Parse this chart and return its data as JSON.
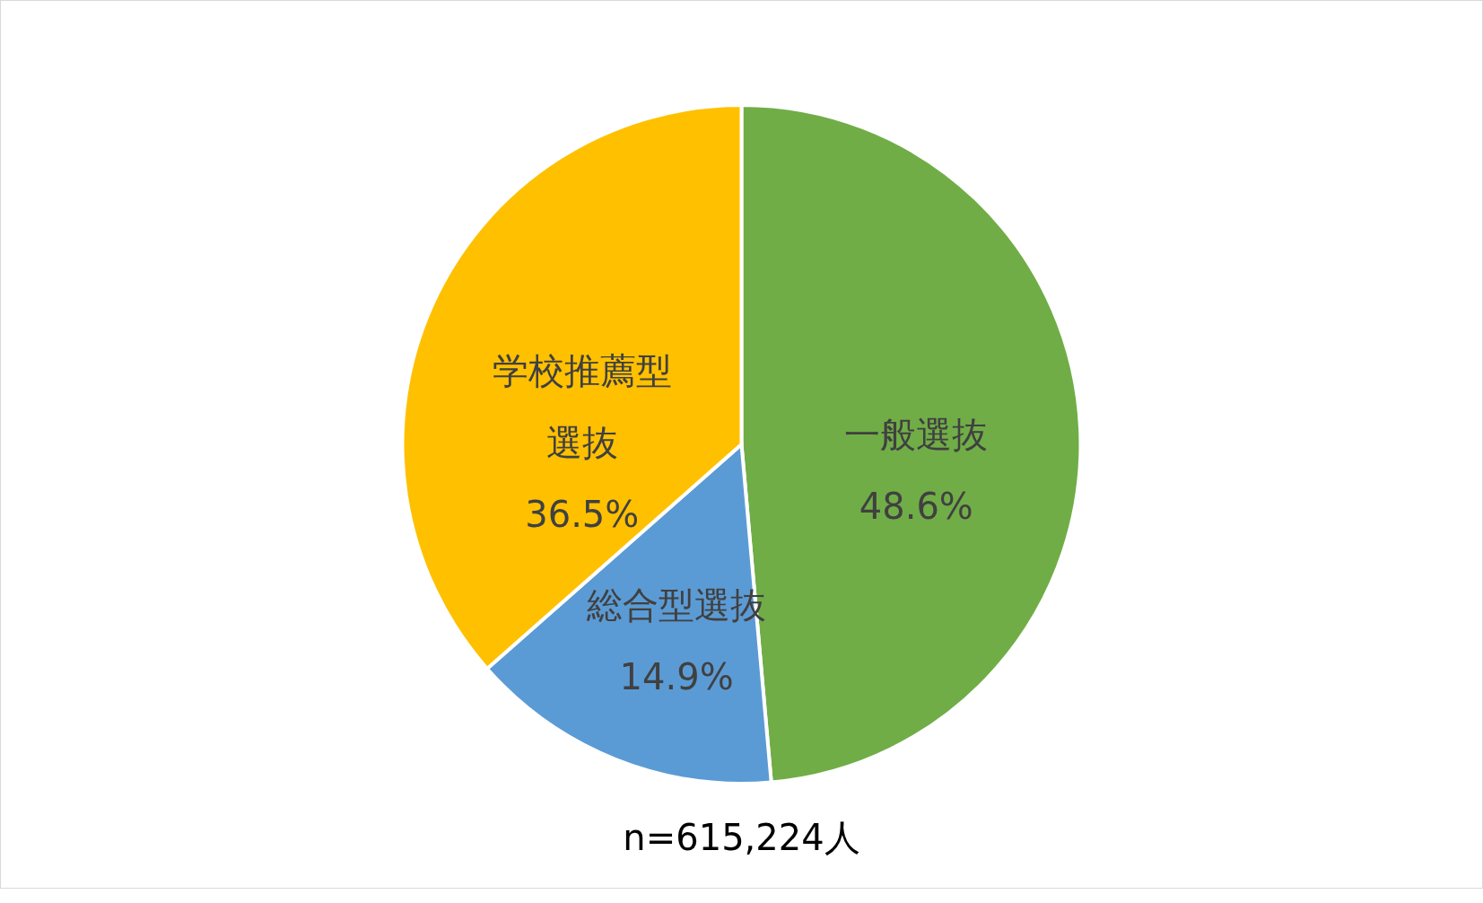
{
  "chart_data": {
    "type": "pie",
    "categories": [
      "一般選抜",
      "総合型選抜",
      "学校推薦型選抜"
    ],
    "values": [
      48.6,
      14.9,
      36.5
    ],
    "colors": [
      "#70ad47",
      "#5b9bd5",
      "#ffc000"
    ],
    "value_labels": [
      "48.6%",
      "14.9%",
      "36.5%"
    ],
    "annotations": [
      "n=615,224人"
    ]
  }
}
